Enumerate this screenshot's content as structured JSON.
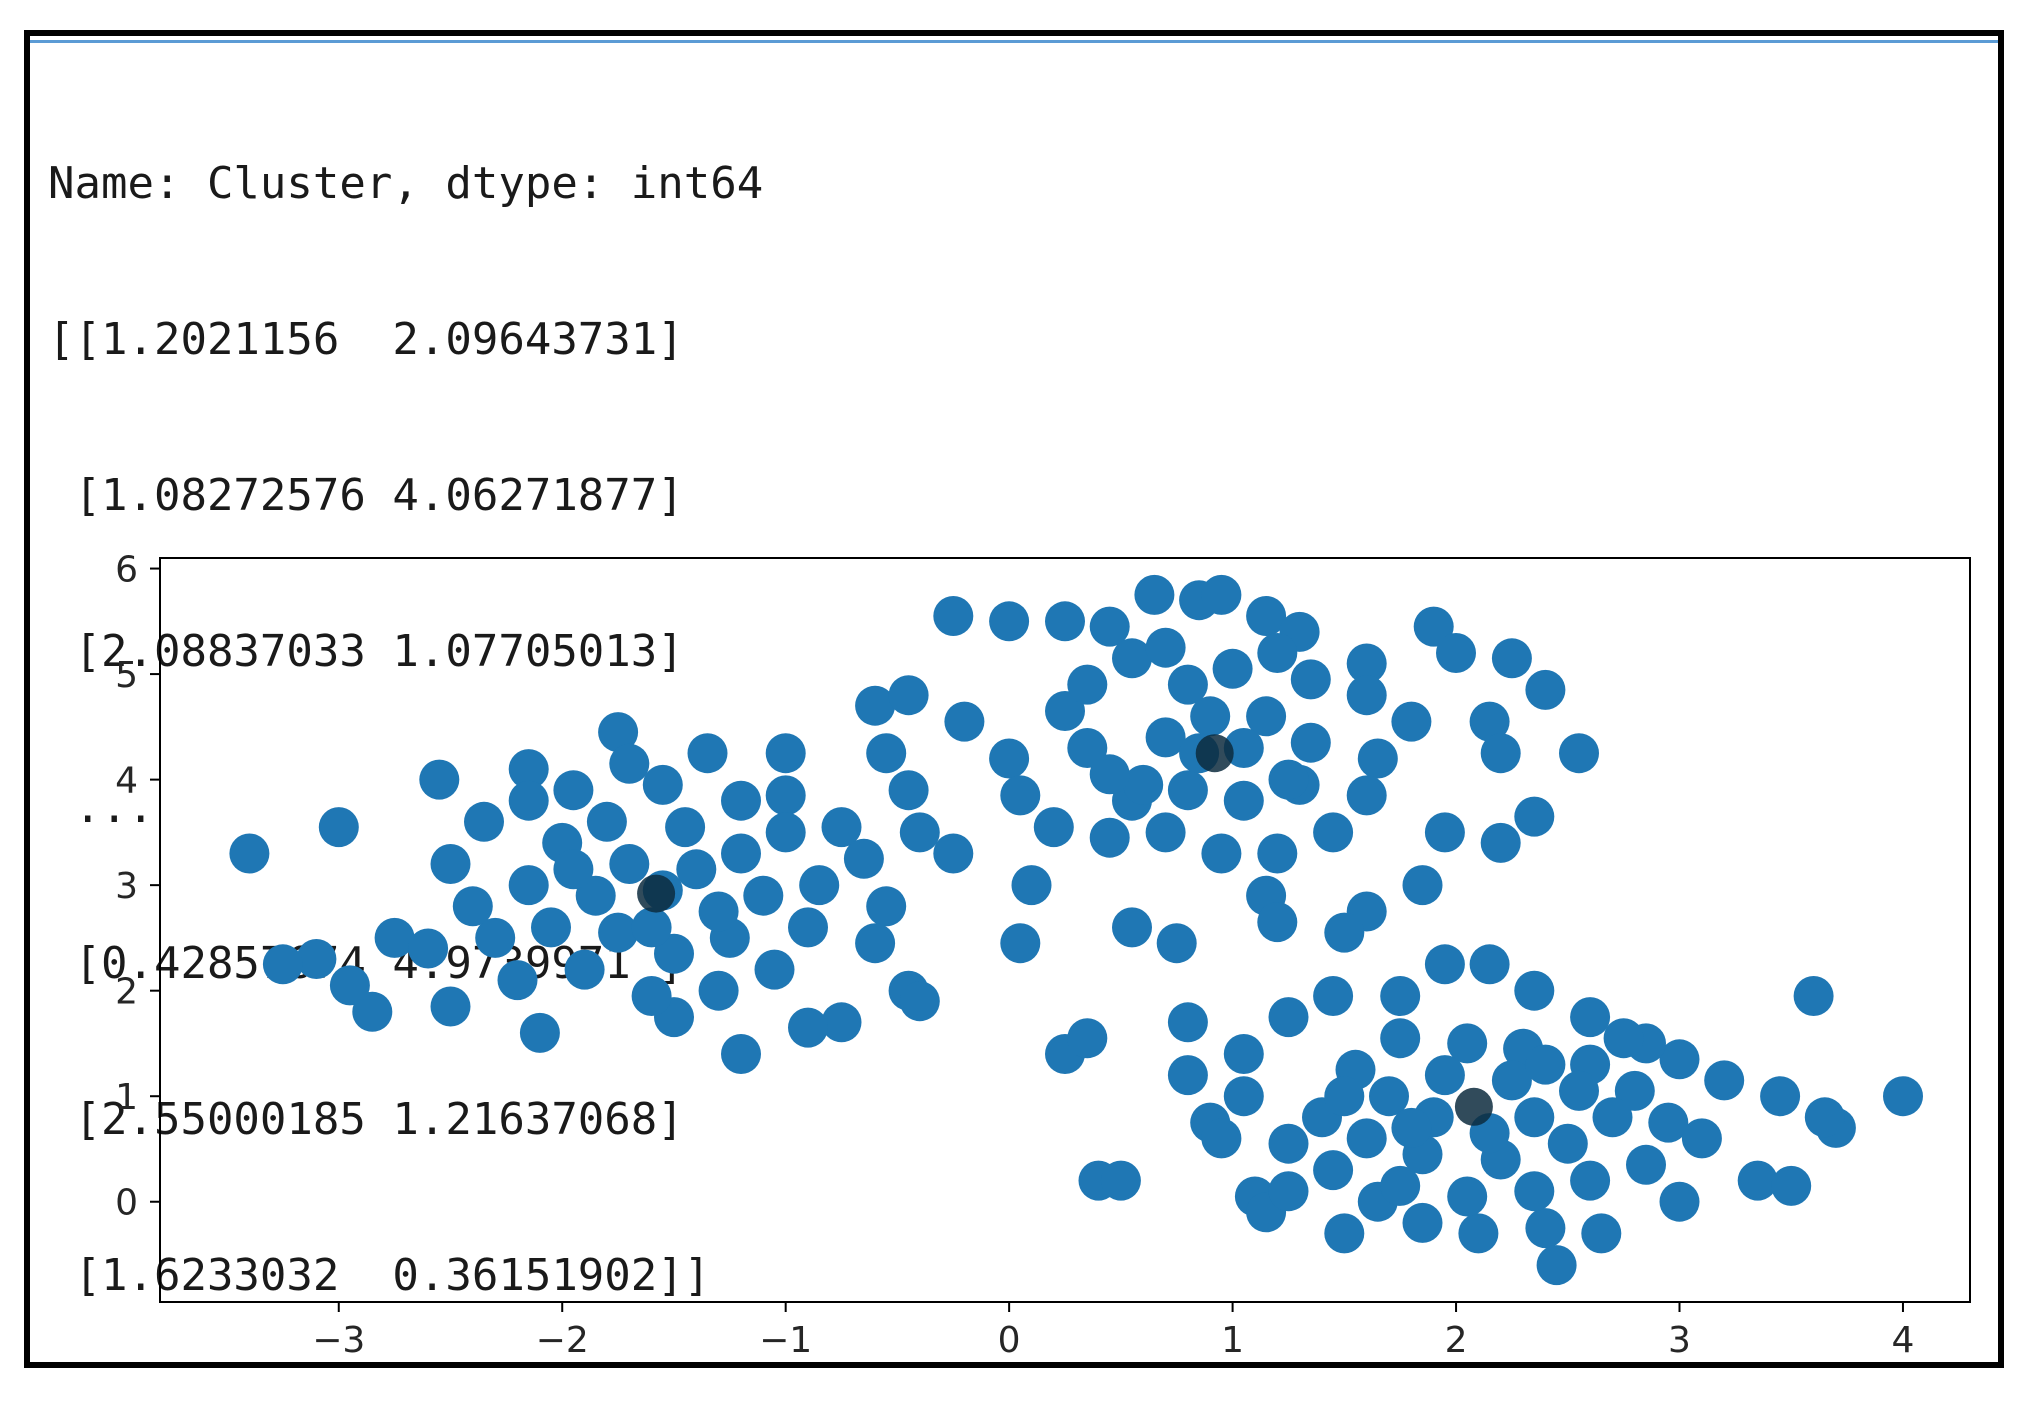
{
  "console": {
    "lines": [
      "Name: Cluster, dtype: int64",
      "[[1.2021156  2.09643731]",
      " [1.08272576 4.06271877]",
      " [2.08837033 1.07705013]",
      " ...",
      " [0.42857674 4.9739971 ]",
      " [2.55000185 1.21637068]",
      " [1.6233032  0.36151902]]"
    ]
  },
  "chart_data": {
    "type": "scatter",
    "title": "",
    "xlabel": "",
    "ylabel": "",
    "xlim": [
      -3.8,
      4.3
    ],
    "ylim": [
      -0.95,
      6.1
    ],
    "xticks": [
      -3,
      -2,
      -1,
      0,
      1,
      2,
      3,
      4
    ],
    "xtick_labels": [
      "−3",
      "−2",
      "−1",
      "0",
      "1",
      "2",
      "3",
      "4"
    ],
    "yticks": [
      0,
      1,
      2,
      3,
      4,
      5,
      6
    ],
    "ytick_labels": [
      "0",
      "1",
      "2",
      "3",
      "4",
      "5",
      "6"
    ],
    "grid": false,
    "legend": "none",
    "point_color": "#1f77b4",
    "centroid_color": "#0d2b3e",
    "series": [
      {
        "values": [
          [
            -3.4,
            3.3
          ],
          [
            -3.0,
            3.55
          ],
          [
            -2.75,
            2.5
          ],
          [
            -2.85,
            1.8
          ],
          [
            -2.95,
            2.05
          ],
          [
            -3.1,
            2.3
          ],
          [
            -3.25,
            2.25
          ],
          [
            -2.6,
            2.4
          ],
          [
            -2.5,
            1.85
          ],
          [
            -2.55,
            4.0
          ],
          [
            -2.15,
            4.1
          ],
          [
            -1.75,
            4.45
          ],
          [
            -1.7,
            4.15
          ],
          [
            -1.35,
            4.25
          ],
          [
            -1.0,
            4.25
          ],
          [
            -1.0,
            3.85
          ],
          [
            -0.75,
            3.55
          ],
          [
            -0.65,
            3.25
          ],
          [
            -0.55,
            2.8
          ],
          [
            -0.6,
            2.45
          ],
          [
            -0.45,
            2.0
          ],
          [
            -0.4,
            1.9
          ],
          [
            -0.75,
            1.7
          ],
          [
            -0.9,
            1.65
          ],
          [
            -1.2,
            1.4
          ],
          [
            -1.5,
            1.75
          ],
          [
            -2.1,
            1.6
          ],
          [
            -2.2,
            2.1
          ],
          [
            -2.3,
            2.5
          ],
          [
            -2.4,
            2.8
          ],
          [
            -2.5,
            3.2
          ],
          [
            -2.35,
            3.6
          ],
          [
            -2.15,
            3.8
          ],
          [
            -1.95,
            3.9
          ],
          [
            -1.55,
            3.95
          ],
          [
            -1.2,
            3.8
          ],
          [
            -1.0,
            3.5
          ],
          [
            -0.85,
            3.0
          ],
          [
            -0.9,
            2.6
          ],
          [
            -1.05,
            2.2
          ],
          [
            -1.3,
            2.0
          ],
          [
            -1.6,
            1.95
          ],
          [
            -1.9,
            2.2
          ],
          [
            -2.05,
            2.6
          ],
          [
            -2.15,
            3.0
          ],
          [
            -2.0,
            3.4
          ],
          [
            -1.8,
            3.6
          ],
          [
            -1.45,
            3.55
          ],
          [
            -1.2,
            3.3
          ],
          [
            -1.1,
            2.9
          ],
          [
            -1.25,
            2.5
          ],
          [
            -1.5,
            2.35
          ],
          [
            -1.75,
            2.55
          ],
          [
            -1.85,
            2.9
          ],
          [
            -1.7,
            3.2
          ],
          [
            -1.4,
            3.15
          ],
          [
            -1.3,
            2.75
          ],
          [
            -1.6,
            2.6
          ],
          [
            -1.95,
            3.15
          ],
          [
            -1.55,
            2.95
          ],
          [
            -0.25,
            5.55
          ],
          [
            0.0,
            5.5
          ],
          [
            0.25,
            5.5
          ],
          [
            0.45,
            5.45
          ],
          [
            0.65,
            5.75
          ],
          [
            0.85,
            5.7
          ],
          [
            0.95,
            5.75
          ],
          [
            1.15,
            5.55
          ],
          [
            1.3,
            5.4
          ],
          [
            1.6,
            5.1
          ],
          [
            1.9,
            5.45
          ],
          [
            2.0,
            5.2
          ],
          [
            2.25,
            5.15
          ],
          [
            2.4,
            4.85
          ],
          [
            2.15,
            4.55
          ],
          [
            2.55,
            4.25
          ],
          [
            2.2,
            4.25
          ],
          [
            2.35,
            3.65
          ],
          [
            2.2,
            3.4
          ],
          [
            1.95,
            3.5
          ],
          [
            1.85,
            3.0
          ],
          [
            1.6,
            2.75
          ],
          [
            1.5,
            2.55
          ],
          [
            1.15,
            2.9
          ],
          [
            1.2,
            2.65
          ],
          [
            0.75,
            2.45
          ],
          [
            0.55,
            2.6
          ],
          [
            0.05,
            2.45
          ],
          [
            0.1,
            3.0
          ],
          [
            -0.25,
            3.3
          ],
          [
            -0.4,
            3.5
          ],
          [
            -0.45,
            3.9
          ],
          [
            -0.55,
            4.25
          ],
          [
            -0.6,
            4.7
          ],
          [
            -0.45,
            4.8
          ],
          [
            -0.2,
            4.55
          ],
          [
            0.0,
            4.2
          ],
          [
            0.05,
            3.85
          ],
          [
            0.2,
            3.55
          ],
          [
            0.45,
            3.45
          ],
          [
            0.55,
            3.8
          ],
          [
            0.35,
            4.3
          ],
          [
            0.25,
            4.65
          ],
          [
            0.35,
            4.9
          ],
          [
            0.55,
            5.15
          ],
          [
            0.7,
            5.25
          ],
          [
            0.8,
            4.9
          ],
          [
            1.0,
            5.05
          ],
          [
            1.2,
            5.2
          ],
          [
            1.35,
            4.95
          ],
          [
            1.6,
            4.8
          ],
          [
            1.8,
            4.55
          ],
          [
            1.65,
            4.2
          ],
          [
            1.6,
            3.85
          ],
          [
            1.45,
            3.5
          ],
          [
            1.2,
            3.3
          ],
          [
            0.95,
            3.3
          ],
          [
            0.7,
            3.5
          ],
          [
            0.6,
            3.95
          ],
          [
            0.7,
            4.4
          ],
          [
            0.9,
            4.6
          ],
          [
            1.15,
            4.6
          ],
          [
            1.35,
            4.35
          ],
          [
            1.3,
            3.95
          ],
          [
            1.05,
            3.8
          ],
          [
            0.8,
            3.9
          ],
          [
            0.85,
            4.25
          ],
          [
            1.05,
            4.3
          ],
          [
            1.25,
            4.0
          ],
          [
            0.45,
            4.05
          ],
          [
            0.25,
            1.4
          ],
          [
            0.35,
            1.55
          ],
          [
            0.4,
            0.2
          ],
          [
            0.5,
            0.2
          ],
          [
            0.8,
            1.7
          ],
          [
            0.8,
            1.2
          ],
          [
            0.9,
            0.75
          ],
          [
            1.05,
            1.0
          ],
          [
            0.95,
            0.6
          ],
          [
            1.1,
            0.05
          ],
          [
            1.15,
            -0.1
          ],
          [
            1.25,
            0.1
          ],
          [
            1.5,
            -0.3
          ],
          [
            1.65,
            0.0
          ],
          [
            1.85,
            -0.2
          ],
          [
            2.1,
            -0.3
          ],
          [
            2.4,
            -0.25
          ],
          [
            2.45,
            -0.6
          ],
          [
            2.65,
            -0.3
          ],
          [
            3.0,
            0.0
          ],
          [
            3.35,
            0.2
          ],
          [
            3.5,
            0.15
          ],
          [
            3.7,
            0.7
          ],
          [
            3.65,
            0.8
          ],
          [
            3.6,
            1.95
          ],
          [
            4.0,
            1.0
          ],
          [
            3.45,
            1.0
          ],
          [
            3.2,
            1.15
          ],
          [
            3.0,
            1.35
          ],
          [
            2.85,
            1.5
          ],
          [
            2.75,
            1.55
          ],
          [
            2.6,
            1.75
          ],
          [
            2.35,
            2.0
          ],
          [
            2.15,
            2.25
          ],
          [
            1.95,
            2.25
          ],
          [
            1.75,
            1.95
          ],
          [
            1.45,
            1.95
          ],
          [
            1.25,
            1.75
          ],
          [
            1.05,
            1.4
          ],
          [
            1.25,
            0.55
          ],
          [
            1.4,
            0.8
          ],
          [
            1.55,
            1.25
          ],
          [
            1.75,
            1.55
          ],
          [
            2.05,
            1.5
          ],
          [
            2.3,
            1.45
          ],
          [
            2.6,
            1.3
          ],
          [
            2.8,
            1.05
          ],
          [
            2.95,
            0.75
          ],
          [
            3.1,
            0.6
          ],
          [
            2.85,
            0.35
          ],
          [
            2.6,
            0.2
          ],
          [
            2.35,
            0.1
          ],
          [
            2.05,
            0.05
          ],
          [
            1.75,
            0.15
          ],
          [
            1.45,
            0.3
          ],
          [
            1.6,
            0.6
          ],
          [
            1.85,
            0.45
          ],
          [
            2.2,
            0.4
          ],
          [
            2.5,
            0.55
          ],
          [
            2.7,
            0.8
          ],
          [
            2.55,
            1.05
          ],
          [
            2.25,
            1.15
          ],
          [
            1.95,
            1.2
          ],
          [
            1.7,
            1.0
          ],
          [
            1.9,
            0.8
          ],
          [
            2.35,
            0.8
          ],
          [
            2.15,
            0.65
          ],
          [
            1.8,
            0.7
          ],
          [
            2.4,
            1.3
          ],
          [
            1.5,
            1.0
          ]
        ]
      }
    ],
    "centroids": [
      [
        -1.58,
        2.92
      ],
      [
        0.92,
        4.25
      ],
      [
        2.08,
        0.9
      ]
    ]
  }
}
